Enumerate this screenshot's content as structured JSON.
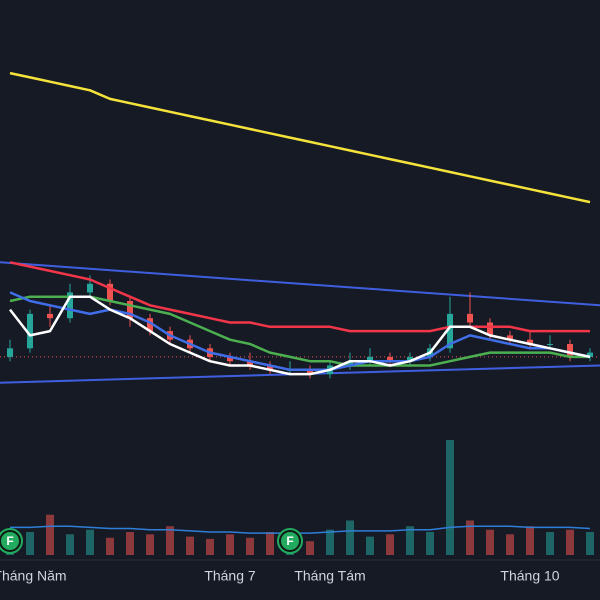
{
  "chart_data": {
    "type": "candlestick",
    "categories": [
      null,
      "Tháng Năm",
      null,
      null,
      null,
      null,
      null,
      null,
      null,
      null,
      null,
      "Tháng 7",
      null,
      null,
      null,
      null,
      "Tháng Tám",
      null,
      null,
      null,
      null,
      null,
      null,
      null,
      null,
      null,
      "Tháng 10",
      null,
      null,
      null
    ],
    "candles": [
      [
        17,
        21,
        16,
        19
      ],
      [
        19,
        28,
        18,
        27
      ],
      [
        27,
        29,
        24,
        26
      ],
      [
        26,
        34,
        25,
        32
      ],
      [
        32,
        36,
        31,
        34
      ],
      [
        34,
        35,
        29,
        30
      ],
      [
        30,
        31,
        24,
        26
      ],
      [
        26,
        27,
        22,
        23
      ],
      [
        23,
        24,
        20,
        21
      ],
      [
        21,
        22,
        18,
        19
      ],
      [
        19,
        20,
        16,
        17
      ],
      [
        17,
        18,
        15,
        16
      ],
      [
        16,
        18,
        14,
        15
      ],
      [
        15,
        16,
        13,
        14
      ],
      [
        14,
        16,
        13,
        14
      ],
      [
        14,
        15,
        12,
        13
      ],
      [
        13,
        16,
        12,
        15
      ],
      [
        15,
        18,
        14,
        16
      ],
      [
        16,
        19,
        15,
        17
      ],
      [
        17,
        18,
        15,
        16
      ],
      [
        16,
        18,
        15,
        17
      ],
      [
        17,
        20,
        16,
        19
      ],
      [
        19,
        31,
        18,
        27
      ],
      [
        27,
        32,
        24,
        25
      ],
      [
        25,
        26,
        21,
        22
      ],
      [
        22,
        23,
        20,
        21
      ],
      [
        21,
        23,
        19,
        20
      ],
      [
        20,
        22,
        19,
        20
      ],
      [
        20,
        21,
        16,
        17
      ],
      [
        17,
        19,
        16,
        18
      ]
    ],
    "up_color": "#26a69a",
    "down_color": "#ef5350",
    "ylim": [
      0,
      100
    ],
    "series": [
      {
        "color": "#f5e33b",
        "values": [
          83,
          82,
          81,
          80,
          79,
          77,
          76,
          75,
          74,
          73,
          72,
          71,
          70,
          69,
          68,
          67,
          66,
          65,
          64,
          63,
          62,
          61,
          60,
          59,
          58,
          57,
          56,
          55,
          54,
          53
        ]
      },
      {
        "color": "#f2364a",
        "values": [
          39,
          38,
          37,
          36,
          35,
          33,
          31,
          29,
          28,
          27,
          26,
          25,
          25,
          24,
          24,
          24,
          24,
          23,
          23,
          23,
          23,
          23,
          24,
          24,
          24,
          24,
          23,
          23,
          23,
          23
        ]
      },
      {
        "color": "#4caf50",
        "values": [
          30,
          31,
          31,
          31,
          31,
          30,
          29,
          28,
          27,
          25,
          23,
          21,
          20,
          18,
          17,
          16,
          16,
          15,
          15,
          15,
          15,
          15,
          16,
          17,
          18,
          18,
          18,
          18,
          17,
          17
        ]
      },
      {
        "color": "#3f6ee8",
        "values": [
          32,
          30,
          29,
          28,
          27,
          28,
          27,
          25,
          22,
          20,
          18,
          17,
          16,
          15,
          14,
          14,
          14,
          15,
          16,
          16,
          16,
          17,
          20,
          22,
          21,
          20,
          19,
          19,
          18,
          17
        ]
      },
      {
        "color": "#ffffff",
        "values": [
          28,
          22,
          23,
          31,
          31,
          28,
          26,
          23,
          20,
          18,
          16,
          15,
          15,
          14,
          13,
          13,
          14,
          16,
          16,
          15,
          16,
          18,
          24,
          24,
          22,
          21,
          20,
          19,
          18,
          17
        ]
      }
    ],
    "trendlines": [
      {
        "color": "#3f5fe0",
        "x": [
          -0.5,
          29.5
        ],
        "values": [
          39,
          29
        ]
      },
      {
        "color": "#3f5fe0",
        "x": [
          -0.5,
          29.5
        ],
        "values": [
          11,
          15
        ]
      }
    ],
    "price_line": {
      "color": "#ef5350",
      "value": 17
    },
    "volume": [
      15,
      20,
      35,
      18,
      22,
      15,
      20,
      18,
      25,
      16,
      14,
      18,
      15,
      20,
      14,
      12,
      22,
      30,
      16,
      18,
      25,
      20,
      100,
      30,
      22,
      18,
      25,
      20,
      22,
      20
    ],
    "volume_lim": [
      0,
      100
    ],
    "volume_ma": {
      "color": "#2f7fd8",
      "values": [
        24,
        24,
        25,
        25,
        24,
        23,
        23,
        22,
        22,
        21,
        20,
        20,
        19,
        19,
        19,
        19,
        20,
        21,
        21,
        21,
        22,
        22,
        24,
        25,
        25,
        25,
        24,
        24,
        24,
        23
      ]
    },
    "events": [
      {
        "x": 0,
        "label": "F"
      },
      {
        "x": 14,
        "label": "F"
      }
    ]
  }
}
